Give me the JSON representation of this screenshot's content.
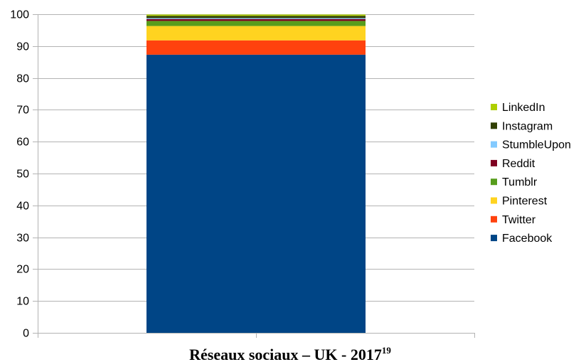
{
  "chart_data": {
    "type": "bar",
    "stacked": true,
    "categories": [
      ""
    ],
    "series": [
      {
        "name": "Facebook",
        "values": [
          87.3
        ],
        "color": "#004586"
      },
      {
        "name": "Twitter",
        "values": [
          4.5
        ],
        "color": "#ff420e"
      },
      {
        "name": "Pinterest",
        "values": [
          4.5
        ],
        "color": "#ffd320"
      },
      {
        "name": "Tumblr",
        "values": [
          1.6
        ],
        "color": "#579d1c"
      },
      {
        "name": "Reddit",
        "values": [
          0.6
        ],
        "color": "#7e0021"
      },
      {
        "name": "StumbleUpon",
        "values": [
          0.3
        ],
        "color": "#83caff"
      },
      {
        "name": "Instagram",
        "values": [
          0.7
        ],
        "color": "#314004"
      },
      {
        "name": "LinkedIn",
        "values": [
          0.4
        ],
        "color": "#aecf00"
      }
    ],
    "ylim": [
      0,
      100
    ],
    "yticks": [
      "0",
      "10",
      "20",
      "30",
      "40",
      "50",
      "60",
      "70",
      "80",
      "90",
      "100"
    ],
    "grid": true,
    "legend_position": "right",
    "caption": {
      "text": "Réseaux sociaux – UK - 2017",
      "superscript": "19"
    }
  }
}
